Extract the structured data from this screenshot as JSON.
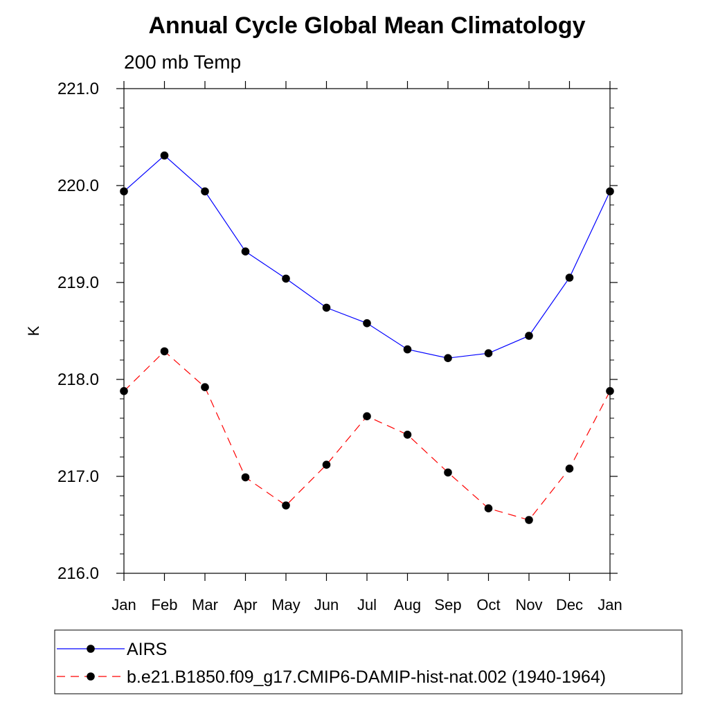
{
  "chart_data": {
    "type": "line",
    "title": "Annual Cycle Global Mean Climatology",
    "subtitle": "200 mb Temp",
    "ylabel": "K",
    "xlabel": "",
    "categories": [
      "Jan",
      "Feb",
      "Mar",
      "Apr",
      "May",
      "Jun",
      "Jul",
      "Aug",
      "Sep",
      "Oct",
      "Nov",
      "Dec",
      "Jan"
    ],
    "ylim": [
      216.0,
      221.0
    ],
    "yticks": [
      "216.0",
      "217.0",
      "218.0",
      "219.0",
      "220.0",
      "221.0"
    ],
    "y_minor_step": 0.2,
    "grid": false,
    "legend_position": "bottom",
    "series": [
      {
        "name": "AIRS",
        "color": "#0000ff",
        "line_style": "solid",
        "marker": "filled-circle",
        "values": [
          219.94,
          220.31,
          219.94,
          219.32,
          219.04,
          218.74,
          218.58,
          218.31,
          218.22,
          218.27,
          218.45,
          219.05,
          219.94
        ]
      },
      {
        "name": "b.e21.B1850.f09_g17.CMIP6-DAMIP-hist-nat.002 (1940-1964)",
        "color": "#ff0000",
        "line_style": "dashed",
        "marker": "filled-circle",
        "values": [
          217.88,
          218.29,
          217.92,
          216.99,
          216.7,
          217.12,
          217.62,
          217.43,
          217.04,
          216.67,
          216.55,
          217.08,
          217.88
        ]
      }
    ]
  }
}
